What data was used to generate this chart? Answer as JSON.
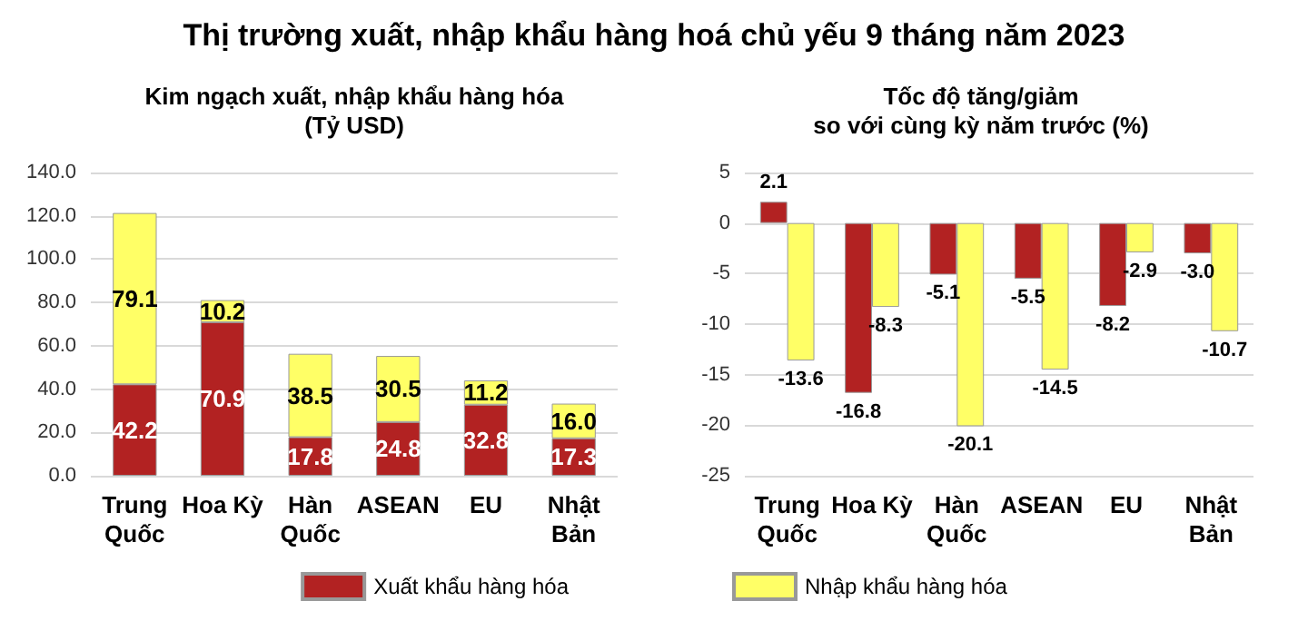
{
  "chart_data": [
    {
      "type": "bar",
      "title": "Thị trường xuất, nhập khẩu hàng hoá chủ yếu 9 tháng năm 2023",
      "subtitle": "Kim ngạch xuất, nhập khẩu hàng hóa\n(Tỷ USD)",
      "categories": [
        "Trung\nQuốc",
        "Hoa Kỳ",
        "Hàn\nQuốc",
        "ASEAN",
        "EU",
        "Nhật\nBản"
      ],
      "stacked": true,
      "data_labels": true,
      "grid": "y",
      "legend": "bottom",
      "series": [
        {
          "name": "Xuất khẩu hàng hóa",
          "color": "#b22222",
          "values": [
            42.2,
            70.9,
            17.8,
            24.8,
            32.8,
            17.3
          ]
        },
        {
          "name": "Nhập khẩu hàng hóa",
          "color": "#ffff66",
          "values": [
            79.1,
            10.2,
            38.5,
            30.5,
            11.2,
            16.0
          ],
          "value_labels": [
            "79.1",
            "10.2",
            "38.5",
            "30.5",
            "11.2",
            "16.0"
          ]
        }
      ],
      "ylim": [
        0,
        140
      ],
      "yticks": [
        {
          "value": 0,
          "label": "0.0"
        },
        {
          "value": 20,
          "label": "20.0"
        },
        {
          "value": 40,
          "label": "40.0"
        },
        {
          "value": 60,
          "label": "60.0"
        },
        {
          "value": 80,
          "label": "80.0"
        },
        {
          "value": 100,
          "label": "100.0"
        },
        {
          "value": 120,
          "label": "120.0"
        },
        {
          "value": 140,
          "label": "140.0"
        }
      ]
    },
    {
      "type": "bar",
      "title": "Tốc độ tăng/giảm\nso với cùng kỳ năm trước (%)",
      "categories": [
        "Trung\nQuốc",
        "Hoa Kỳ",
        "Hàn\nQuốc",
        "ASEAN",
        "EU",
        "Nhật\nBản"
      ],
      "data_labels": true,
      "grid": "y",
      "legend": false,
      "series": [
        {
          "color": "#b22222",
          "values": [
            2.1,
            -16.8,
            -5.1,
            -5.5,
            -8.2,
            -3.0
          ],
          "value_labels": [
            "2.1",
            "-16.8",
            "-5.1",
            "-5.5",
            "-8.2",
            "-3.0"
          ]
        },
        {
          "color": "#ffff66",
          "values": [
            -13.6,
            -8.3,
            -20.1,
            -14.5,
            -2.9,
            -10.7
          ]
        }
      ],
      "ylim": [
        -25,
        5
      ],
      "yticks": [
        -25,
        -20,
        -15,
        -10,
        -5,
        0,
        5
      ]
    }
  ]
}
